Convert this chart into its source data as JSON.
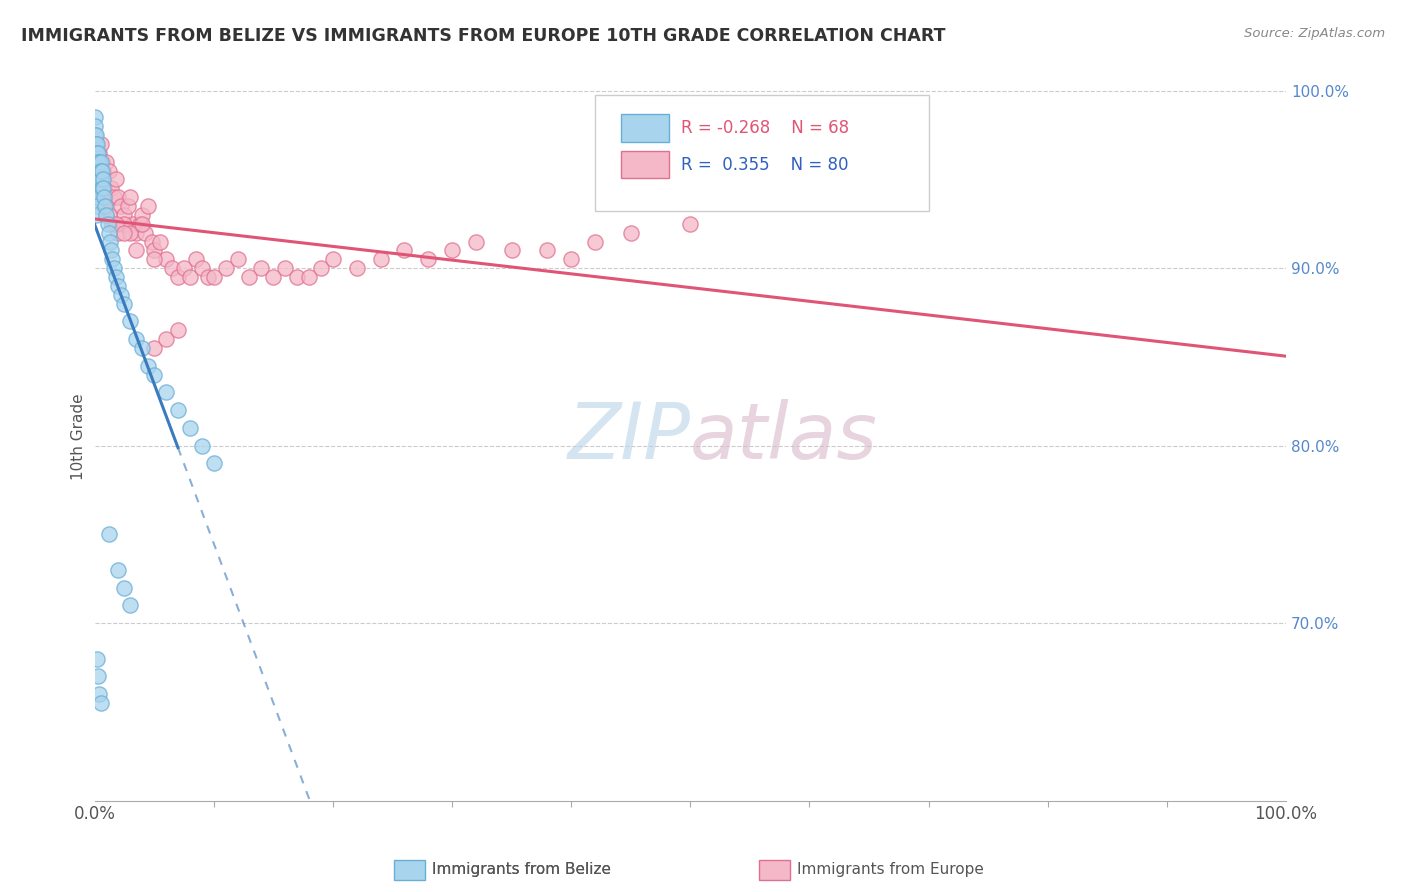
{
  "title": "IMMIGRANTS FROM BELIZE VS IMMIGRANTS FROM EUROPE 10TH GRADE CORRELATION CHART",
  "source_text": "Source: ZipAtlas.com",
  "ylabel": "10th Grade",
  "color_belize": "#a8d4ed",
  "color_europe": "#f4b8c8",
  "color_belize_edge": "#6aaed6",
  "color_europe_edge": "#e07090",
  "trend_belize": "#3a7bbf",
  "trend_europe": "#e05575",
  "watermark_color": "#d8e8f0",
  "watermark_color2": "#e8d0d8",
  "legend_r1_color": "#e05575",
  "legend_r2_color": "#3060c0",
  "figsize": [
    14.06,
    8.92
  ],
  "dpi": 100,
  "xlim": [
    0.0,
    1.0
  ],
  "ylim": [
    0.6,
    1.01
  ],
  "belize_x": [
    0.0,
    0.0,
    0.0,
    0.0,
    0.0,
    0.0,
    0.0,
    0.0,
    0.0,
    0.0,
    0.001,
    0.001,
    0.001,
    0.001,
    0.001,
    0.001,
    0.001,
    0.001,
    0.001,
    0.001,
    0.002,
    0.002,
    0.002,
    0.002,
    0.003,
    0.003,
    0.003,
    0.004,
    0.004,
    0.004,
    0.005,
    0.005,
    0.005,
    0.006,
    0.006,
    0.007,
    0.007,
    0.008,
    0.009,
    0.01,
    0.011,
    0.012,
    0.013,
    0.014,
    0.015,
    0.016,
    0.018,
    0.02,
    0.022,
    0.025,
    0.03,
    0.035,
    0.04,
    0.045,
    0.05,
    0.06,
    0.07,
    0.08,
    0.09,
    0.1,
    0.012,
    0.02,
    0.025,
    0.03,
    0.002,
    0.003,
    0.004,
    0.005
  ],
  "belize_y": [
    0.985,
    0.98,
    0.975,
    0.97,
    0.965,
    0.96,
    0.955,
    0.95,
    0.945,
    0.94,
    0.975,
    0.97,
    0.965,
    0.96,
    0.955,
    0.95,
    0.945,
    0.94,
    0.935,
    0.93,
    0.97,
    0.965,
    0.96,
    0.955,
    0.965,
    0.96,
    0.955,
    0.96,
    0.955,
    0.95,
    0.96,
    0.955,
    0.95,
    0.955,
    0.945,
    0.95,
    0.945,
    0.94,
    0.935,
    0.93,
    0.925,
    0.92,
    0.915,
    0.91,
    0.905,
    0.9,
    0.895,
    0.89,
    0.885,
    0.88,
    0.87,
    0.86,
    0.855,
    0.845,
    0.84,
    0.83,
    0.82,
    0.81,
    0.8,
    0.79,
    0.75,
    0.73,
    0.72,
    0.71,
    0.68,
    0.67,
    0.66,
    0.655
  ],
  "europe_x": [
    0.001,
    0.002,
    0.003,
    0.004,
    0.005,
    0.006,
    0.007,
    0.008,
    0.009,
    0.01,
    0.012,
    0.014,
    0.016,
    0.018,
    0.02,
    0.022,
    0.025,
    0.028,
    0.03,
    0.032,
    0.035,
    0.038,
    0.04,
    0.042,
    0.045,
    0.048,
    0.05,
    0.055,
    0.06,
    0.065,
    0.07,
    0.075,
    0.08,
    0.085,
    0.09,
    0.095,
    0.1,
    0.11,
    0.12,
    0.13,
    0.14,
    0.15,
    0.16,
    0.17,
    0.18,
    0.19,
    0.2,
    0.22,
    0.24,
    0.26,
    0.28,
    0.3,
    0.32,
    0.35,
    0.38,
    0.4,
    0.42,
    0.45,
    0.5,
    0.003,
    0.005,
    0.008,
    0.01,
    0.015,
    0.02,
    0.025,
    0.03,
    0.04,
    0.05,
    0.06,
    0.002,
    0.004,
    0.006,
    0.008,
    0.012,
    0.018,
    0.025,
    0.035,
    0.05,
    0.07
  ],
  "europe_y": [
    0.96,
    0.955,
    0.95,
    0.965,
    0.97,
    0.96,
    0.955,
    0.945,
    0.94,
    0.96,
    0.955,
    0.945,
    0.94,
    0.95,
    0.94,
    0.935,
    0.93,
    0.935,
    0.94,
    0.925,
    0.92,
    0.925,
    0.93,
    0.92,
    0.935,
    0.915,
    0.91,
    0.915,
    0.905,
    0.9,
    0.895,
    0.9,
    0.895,
    0.905,
    0.9,
    0.895,
    0.895,
    0.9,
    0.905,
    0.895,
    0.9,
    0.895,
    0.9,
    0.895,
    0.895,
    0.9,
    0.905,
    0.9,
    0.905,
    0.91,
    0.905,
    0.91,
    0.915,
    0.91,
    0.91,
    0.905,
    0.915,
    0.92,
    0.925,
    0.945,
    0.94,
    0.935,
    0.93,
    0.925,
    0.92,
    0.925,
    0.92,
    0.925,
    0.855,
    0.86,
    0.95,
    0.945,
    0.94,
    0.935,
    0.93,
    0.925,
    0.92,
    0.91,
    0.905,
    0.865
  ]
}
